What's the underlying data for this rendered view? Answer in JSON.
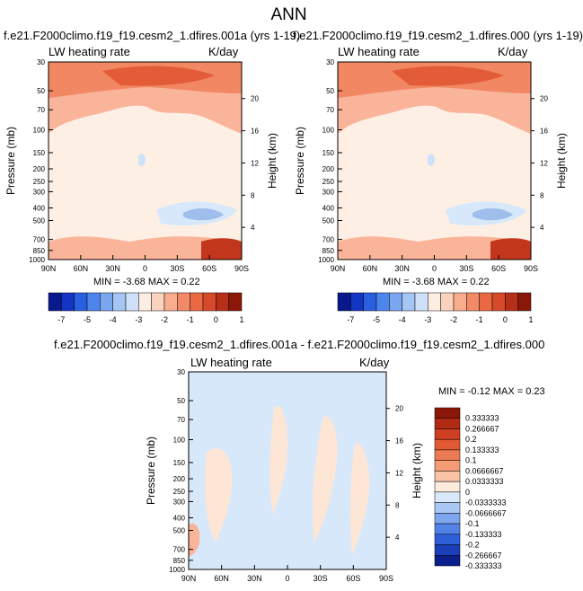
{
  "page_title": "ANN",
  "colors": {
    "bg_light": "#FDEFE4",
    "cool_band": "#D7E8FA",
    "cool_deep": "#9FBEEC",
    "warm_1": "#FDD7C2",
    "warm_2": "#F9B49A",
    "warm_3": "#F28764",
    "warm_4": "#E25C37",
    "warm_5": "#C2371C"
  },
  "chart_data": [
    {
      "type": "heatmap",
      "title": "f.e21.F2000climo.f19_f19.cesm2_1.dfires.001a (yrs 1-19)",
      "left_label": "LW heating rate",
      "right_label": "K/day",
      "ylabel": "Pressure (mb)",
      "y2label": "Height (km)",
      "x_ticks": [
        "90N",
        "60N",
        "30N",
        "0",
        "30S",
        "60S",
        "90S"
      ],
      "y_ticks": [
        "30",
        "50",
        "70",
        "100",
        "150",
        "200",
        "250",
        "300",
        "400",
        "500",
        "700",
        "850",
        "1000"
      ],
      "y2_ticks": [
        "20",
        "16",
        "12",
        "8",
        "4"
      ],
      "stats_text": "MIN = -3.68   MAX =  0.22",
      "min": -3.68,
      "max": 0.22,
      "colorbar_labels": [
        "-7",
        "-5",
        "-4",
        "-3",
        "-2",
        "-1",
        "0",
        "1"
      ]
    },
    {
      "type": "heatmap",
      "title": "f.e21.F2000climo.f19_f19.cesm2_1.dfires.000 (yrs 1-19)",
      "left_label": "LW heating rate",
      "right_label": "K/day",
      "ylabel": "Pressure (mb)",
      "y2label": "Height (km)",
      "x_ticks": [
        "90N",
        "60N",
        "30N",
        "0",
        "30S",
        "60S",
        "90S"
      ],
      "y_ticks": [
        "30",
        "50",
        "70",
        "100",
        "150",
        "200",
        "250",
        "300",
        "400",
        "500",
        "700",
        "850",
        "1000"
      ],
      "y2_ticks": [
        "20",
        "16",
        "12",
        "8",
        "4"
      ],
      "stats_text": "MIN = -3.68   MAX =  0.22",
      "min": -3.68,
      "max": 0.22,
      "colorbar_labels": [
        "-7",
        "-5",
        "-4",
        "-3",
        "-2",
        "-1",
        "0",
        "1"
      ]
    },
    {
      "type": "heatmap",
      "title": "f.e21.F2000climo.f19_f19.cesm2_1.dfires.001a - f.e21.F2000climo.f19_f19.cesm2_1.dfires.000",
      "left_label": "LW heating rate",
      "right_label": "K/day",
      "ylabel": "Pressure (mb)",
      "y2label": "Height (km)",
      "x_ticks": [
        "90N",
        "60N",
        "30N",
        "0",
        "30S",
        "60S",
        "90S"
      ],
      "y_ticks": [
        "30",
        "50",
        "70",
        "100",
        "150",
        "200",
        "250",
        "300",
        "400",
        "500",
        "700",
        "850",
        "1000"
      ],
      "y2_ticks": [
        "20",
        "16",
        "12",
        "8",
        "4"
      ],
      "stats_text": "MIN =  -0.12   MAX =   0.23",
      "min": -0.12,
      "max": 0.23,
      "colorbar_labels": [
        "0.333333",
        "0.266667",
        "0.2",
        "0.133333",
        "0.1",
        "0.0666667",
        "0.0333333",
        "0",
        "-0.0333333",
        "-0.0666667",
        "-0.1",
        "-0.133333",
        "-0.2",
        "-0.266667",
        "-0.333333"
      ]
    }
  ],
  "colorbar_main_colors": [
    "#08198C",
    "#1435C4",
    "#2A5FE0",
    "#4C85EC",
    "#7AA6F0",
    "#A5C5F4",
    "#CFE1F9",
    "#FDEEE3",
    "#FBD2BD",
    "#F8AE8E",
    "#F38A67",
    "#EA6842",
    "#D64A2B",
    "#B63019",
    "#8A1708"
  ],
  "colorbar_diff_colors": [
    "#8A1708",
    "#B02A13",
    "#CF3F22",
    "#E05A33",
    "#EC7A52",
    "#F59B76",
    "#FBC3A6",
    "#FDEBDC",
    "#D9E8FA",
    "#A9C8F3",
    "#7DA6EE",
    "#5282E6",
    "#2E5FD8",
    "#1A3FB8",
    "#0A1F8A"
  ]
}
